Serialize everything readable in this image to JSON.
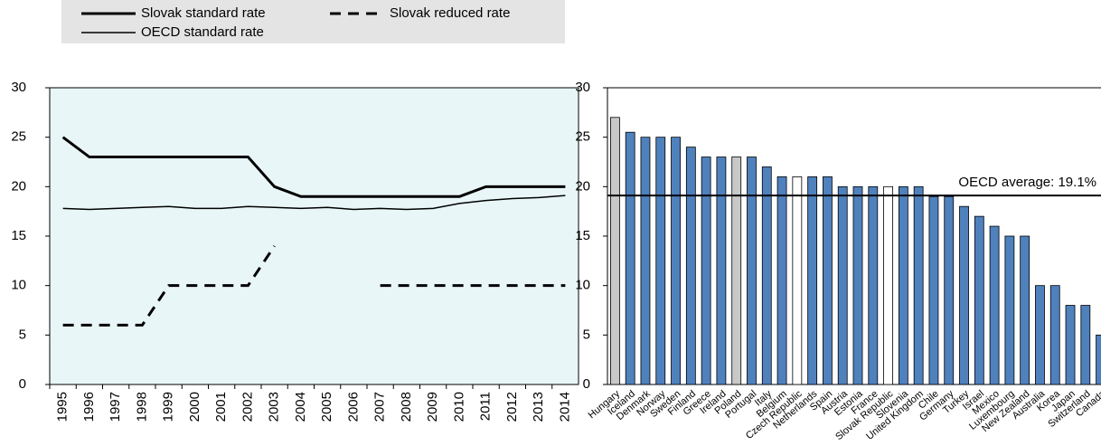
{
  "chart_data": [
    {
      "type": "line",
      "categories": [
        "1995",
        "1996",
        "1997",
        "1998",
        "1999",
        "2000",
        "2001",
        "2002",
        "2003",
        "2004",
        "2005",
        "2006",
        "2007",
        "2008",
        "2009",
        "2010",
        "2011",
        "2012",
        "2013",
        "2014"
      ],
      "series": [
        {
          "name": "Slovak standard rate",
          "color": "#000000",
          "width": 3,
          "dash": false,
          "values": [
            25,
            23,
            23,
            23,
            23,
            23,
            23,
            23,
            20,
            19,
            19,
            19,
            19,
            19,
            19,
            19,
            20,
            20,
            20,
            20
          ]
        },
        {
          "name": "Slovak reduced rate",
          "color": "#000000",
          "width": 3,
          "dash": true,
          "values": [
            6,
            6,
            6,
            6,
            10,
            10,
            10,
            10,
            14,
            null,
            null,
            null,
            10,
            10,
            10,
            10,
            10,
            10,
            10,
            10
          ]
        },
        {
          "name": "OECD standard rate",
          "color": "#000000",
          "width": 1.5,
          "dash": false,
          "values": [
            17.8,
            17.7,
            17.8,
            17.9,
            18.0,
            17.8,
            17.8,
            18.0,
            17.9,
            17.8,
            17.9,
            17.7,
            17.8,
            17.7,
            17.8,
            18.3,
            18.6,
            18.8,
            18.9,
            19.1
          ]
        }
      ],
      "ylim": [
        0,
        30
      ],
      "yticks": [
        0,
        5,
        10,
        15,
        20,
        25,
        30
      ],
      "background": "#e9f6f8"
    },
    {
      "type": "bar",
      "categories": [
        "Hungary",
        "Iceland",
        "Denmark",
        "Norway",
        "Sweden",
        "Finland",
        "Greece",
        "Ireland",
        "Poland",
        "Portugal",
        "Italy",
        "Belgium",
        "Czech Republic",
        "Netherlands",
        "Spain",
        "Austria",
        "Estonia",
        "France",
        "Slovak Republic",
        "Slovenia",
        "United Kingdom",
        "Chile",
        "Germany",
        "Turkey",
        "Israel",
        "Mexico",
        "Luxembourg",
        "New Zealand",
        "Australia",
        "Korea",
        "Japan",
        "Switzerland",
        "Canada"
      ],
      "values": [
        27,
        25.5,
        25,
        25,
        25,
        24,
        23,
        23,
        23,
        23,
        22,
        21,
        21,
        21,
        21,
        20,
        20,
        20,
        20,
        20,
        20,
        19,
        19,
        18,
        17,
        16,
        15,
        15,
        10,
        10,
        8,
        8,
        5
      ],
      "colors": [
        "#c8c8c8",
        "#4f81bd",
        "#4f81bd",
        "#4f81bd",
        "#4f81bd",
        "#4f81bd",
        "#4f81bd",
        "#4f81bd",
        "#c8c8c8",
        "#4f81bd",
        "#4f81bd",
        "#4f81bd",
        "#ffffff",
        "#4f81bd",
        "#4f81bd",
        "#4f81bd",
        "#4f81bd",
        "#4f81bd",
        "#ffffff",
        "#4f81bd",
        "#4f81bd",
        "#4f81bd",
        "#4f81bd",
        "#4f81bd",
        "#4f81bd",
        "#4f81bd",
        "#4f81bd",
        "#4f81bd",
        "#4f81bd",
        "#4f81bd",
        "#4f81bd",
        "#4f81bd",
        "#4f81bd"
      ],
      "reference_line": {
        "value": 19.1,
        "label": "OECD average: 19.1%"
      },
      "ylim": [
        0,
        30
      ],
      "yticks": [
        0,
        5,
        10,
        15,
        20,
        25,
        30
      ]
    }
  ]
}
